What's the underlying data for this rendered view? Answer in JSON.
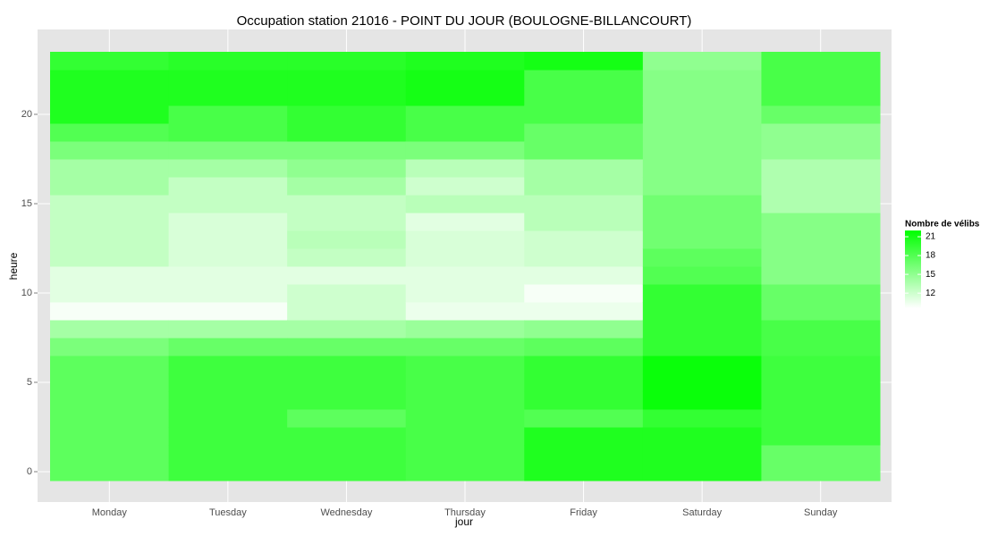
{
  "chart_data": {
    "type": "heatmap",
    "title": "Occupation station 21016 - POINT DU JOUR (BOULOGNE-BILLANCOURT)",
    "x_label": "jour",
    "y_label": "heure",
    "categories": [
      "Monday",
      "Tuesday",
      "Wednesday",
      "Thursday",
      "Friday",
      "Saturday",
      "Sunday"
    ],
    "y": [
      0,
      1,
      2,
      3,
      4,
      5,
      6,
      7,
      8,
      9,
      10,
      11,
      12,
      13,
      14,
      15,
      16,
      17,
      18,
      19,
      20,
      21,
      22,
      23
    ],
    "values": [
      [
        17.5,
        17.5,
        17.5,
        17.5,
        17.5,
        17.5,
        17.5,
        16,
        14,
        10,
        11,
        11,
        12.5,
        12.5,
        12.5,
        12.5,
        14,
        14,
        16,
        18,
        20.5,
        20.5,
        20.5,
        19.5
      ],
      [
        19,
        19,
        19,
        19,
        19,
        19,
        19,
        17,
        14,
        10,
        11,
        11,
        11.5,
        11.5,
        11.5,
        12.5,
        12.5,
        14,
        16,
        18.5,
        18.5,
        20.5,
        20.5,
        20
      ],
      [
        19,
        19,
        19,
        17.5,
        19,
        19,
        19,
        17,
        14,
        12,
        12,
        11,
        12.5,
        13,
        12.5,
        12.5,
        14,
        15,
        16,
        19.5,
        19.5,
        20.5,
        20.5,
        20
      ],
      [
        18.5,
        18.5,
        18.5,
        18.5,
        18.5,
        18.5,
        18.5,
        17,
        14.5,
        10.5,
        11,
        11,
        11.5,
        11.5,
        11,
        13,
        12,
        13,
        16,
        18.5,
        18.5,
        21,
        21,
        20.5
      ],
      [
        20.5,
        20.5,
        20.5,
        18,
        19.5,
        19.5,
        19.5,
        17.5,
        15,
        10.5,
        10,
        11,
        12,
        12,
        13,
        13,
        14,
        14,
        17,
        17,
        18.5,
        18.5,
        18.5,
        21
      ],
      [
        20.5,
        20.5,
        20.5,
        19.5,
        21.5,
        21.5,
        21.5,
        19.5,
        19.5,
        19.5,
        19.5,
        18,
        17.5,
        16.5,
        16.5,
        16.5,
        15.5,
        15.5,
        15.5,
        15.5,
        15.5,
        15.5,
        15.5,
        15
      ],
      [
        17,
        17,
        19,
        19,
        19,
        19,
        19,
        18.5,
        18.5,
        17,
        17,
        15.5,
        15.5,
        15.5,
        15.5,
        13.5,
        13.5,
        13.5,
        15,
        15,
        17,
        18.5,
        18.5,
        18.5
      ]
    ],
    "ylim": [
      -1.7,
      24.75
    ],
    "yticks": [
      0,
      5,
      10,
      15,
      20
    ],
    "grid": true,
    "legend_title": "Nombre de vélibs",
    "legend_ticks": [
      12,
      15,
      18,
      21
    ],
    "colorlim": [
      9.6,
      22
    ],
    "color_low": "#ffffff",
    "color_high": "#00ff00"
  }
}
